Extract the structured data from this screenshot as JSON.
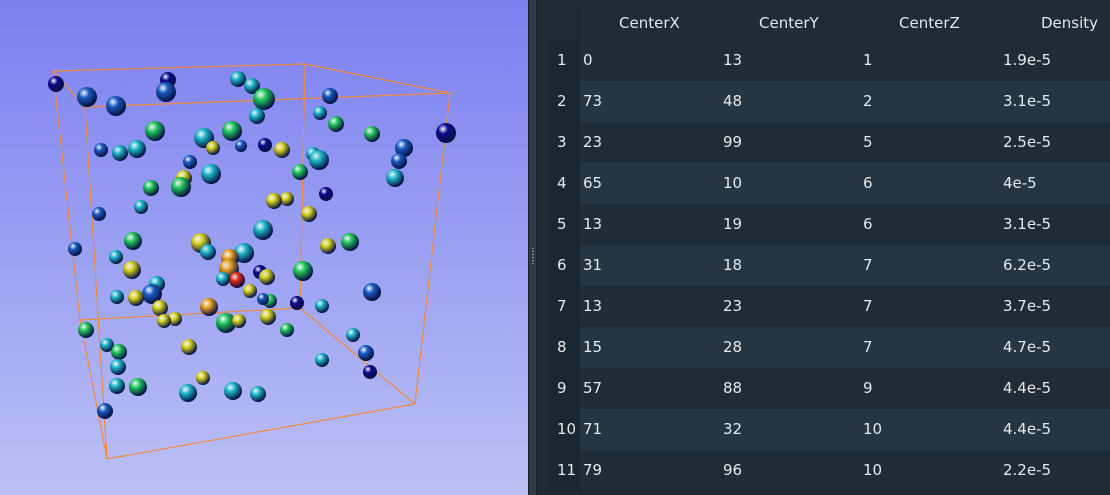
{
  "table": {
    "columns": [
      "CenterX",
      "CenterY",
      "CenterZ",
      "Density"
    ],
    "rows": [
      {
        "index": "1",
        "values": [
          "0",
          "13",
          "1",
          "1.9e-5"
        ]
      },
      {
        "index": "2",
        "values": [
          "73",
          "48",
          "2",
          "3.1e-5"
        ]
      },
      {
        "index": "3",
        "values": [
          "23",
          "99",
          "5",
          "2.5e-5"
        ]
      },
      {
        "index": "4",
        "values": [
          "65",
          "10",
          "6",
          "4e-5"
        ]
      },
      {
        "index": "5",
        "values": [
          "13",
          "19",
          "6",
          "3.1e-5"
        ]
      },
      {
        "index": "6",
        "values": [
          "31",
          "18",
          "7",
          "6.2e-5"
        ]
      },
      {
        "index": "7",
        "values": [
          "13",
          "23",
          "7",
          "3.7e-5"
        ]
      },
      {
        "index": "8",
        "values": [
          "15",
          "28",
          "7",
          "4.7e-5"
        ]
      },
      {
        "index": "9",
        "values": [
          "57",
          "88",
          "9",
          "4.4e-5"
        ]
      },
      {
        "index": "10",
        "values": [
          "71",
          "32",
          "10",
          "4.4e-5"
        ]
      },
      {
        "index": "11",
        "values": [
          "79",
          "96",
          "10",
          "2.2e-5"
        ]
      }
    ]
  },
  "viewport": {
    "box_color": "#f08a3c",
    "background_top": "#7b7ff0",
    "background_bottom": "#bcc0f6",
    "colormap": [
      "#0b0a8c",
      "#1a5cc0",
      "#1fb8c8",
      "#22c85a",
      "#d6d21a",
      "#e8a020",
      "#e82a10"
    ]
  }
}
